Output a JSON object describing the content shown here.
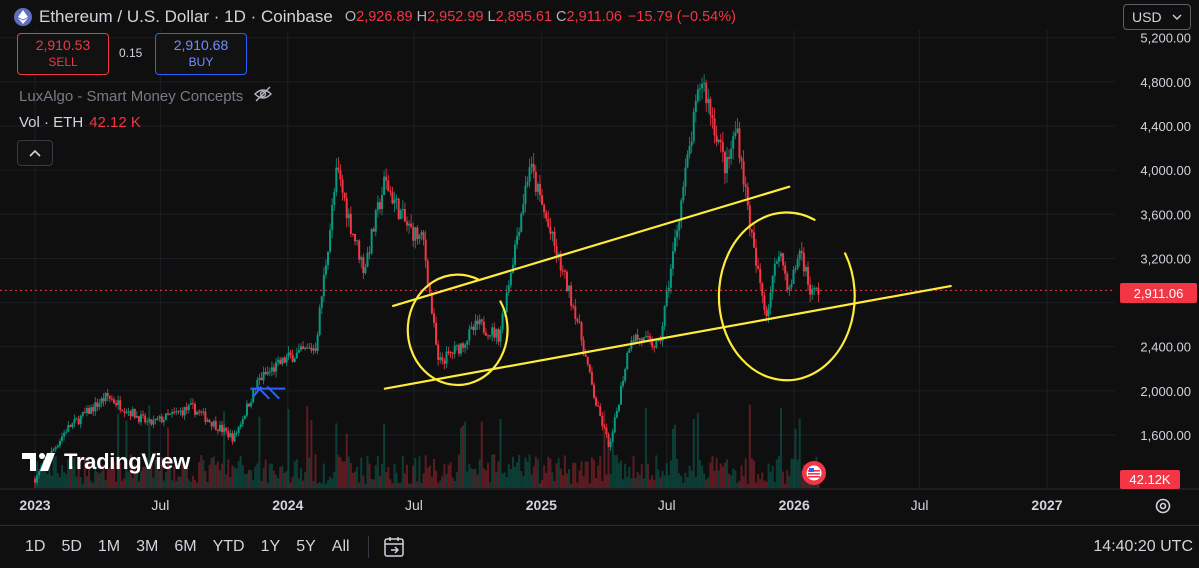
{
  "header": {
    "title": "Ethereum / U.S. Dollar · 1D · Coinbase",
    "ohlc": [
      {
        "k": "O",
        "v": "2,926.89"
      },
      {
        "k": "H",
        "v": "2,952.99"
      },
      {
        "k": "L",
        "v": "2,895.61"
      },
      {
        "k": "C",
        "v": "2,911.06"
      }
    ],
    "change": "−15.79 (−0.54%)"
  },
  "trade": {
    "sell_price": "2,910.53",
    "sell_label": "SELL",
    "spread": "0.15",
    "buy_price": "2,910.68",
    "buy_label": "BUY"
  },
  "indicator": {
    "name": "LuxAlgo - Smart Money Concepts",
    "icon": "eye-off-icon"
  },
  "volume": {
    "label": "Vol · ETH",
    "value": "42.12 K",
    "tag": "42.12K"
  },
  "currency": {
    "selected": "USD"
  },
  "last_price_tag": "2,911.06",
  "brand": "TradingView",
  "bottom": {
    "ranges": [
      "1D",
      "5D",
      "1M",
      "3M",
      "6M",
      "YTD",
      "1Y",
      "5Y",
      "All"
    ],
    "clock": "14:40:20 UTC"
  },
  "colors": {
    "up": "#089981",
    "down": "#f23645",
    "drawing": "#ffeb3b",
    "accent": "#2962ff"
  },
  "chart_data": {
    "type": "candlestick",
    "title": "Ethereum / U.S. Dollar · 1D · Coinbase",
    "y_ticks": [
      1600,
      2000,
      2400,
      2800,
      3200,
      3600,
      4000,
      4400,
      4800,
      5200
    ],
    "y_tick_labels": [
      "1,600.00",
      "2,000.00",
      "2,400.00",
      "",
      "3,200.00",
      "3,600.00",
      "4,000.00",
      "4,400.00",
      "4,800.00",
      "5,200.00"
    ],
    "x_labels": [
      "2023",
      "Jul",
      "2024",
      "Jul",
      "2025",
      "Jul",
      "2026",
      "Jul",
      "2027"
    ],
    "x_bold": [
      true,
      false,
      true,
      false,
      true,
      false,
      true,
      false,
      true
    ],
    "x_dates": [
      "2023-01-01",
      "2023-07-01",
      "2024-01-01",
      "2024-07-01",
      "2025-01-01",
      "2025-07-01",
      "2026-01-01",
      "2026-07-01",
      "2027-01-01"
    ],
    "ylim": [
      1120,
      5270
    ],
    "last_price": 2911.06,
    "price_path": [
      [
        "2023-01-01",
        1200
      ],
      [
        "2023-02-15",
        1650
      ],
      [
        "2023-04-15",
        1950
      ],
      [
        "2023-06-15",
        1700
      ],
      [
        "2023-08-15",
        1850
      ],
      [
        "2023-10-15",
        1570
      ],
      [
        "2023-11-20",
        2100
      ],
      [
        "2024-01-01",
        2300
      ],
      [
        "2024-02-10",
        2400
      ],
      [
        "2024-03-12",
        4000
      ],
      [
        "2024-04-01",
        3500
      ],
      [
        "2024-04-20",
        3100
      ],
      [
        "2024-05-20",
        3900
      ],
      [
        "2024-06-20",
        3500
      ],
      [
        "2024-07-15",
        3350
      ],
      [
        "2024-08-05",
        2250
      ],
      [
        "2024-09-05",
        2400
      ],
      [
        "2024-10-01",
        2600
      ],
      [
        "2024-11-01",
        2500
      ],
      [
        "2024-12-15",
        4050
      ],
      [
        "2025-01-20",
        3300
      ],
      [
        "2025-02-20",
        2700
      ],
      [
        "2025-03-20",
        1900
      ],
      [
        "2025-04-10",
        1480
      ],
      [
        "2025-05-10",
        2500
      ],
      [
        "2025-06-20",
        2400
      ],
      [
        "2025-07-20",
        3650
      ],
      [
        "2025-08-20",
        4850
      ],
      [
        "2025-09-25",
        4000
      ],
      [
        "2025-10-10",
        4400
      ],
      [
        "2025-11-05",
        3200
      ],
      [
        "2025-11-22",
        2700
      ],
      [
        "2025-12-10",
        3300
      ],
      [
        "2025-12-25",
        2900
      ],
      [
        "2026-01-10",
        3300
      ],
      [
        "2026-01-25",
        2880
      ],
      [
        "2026-02-05",
        2911
      ]
    ],
    "annotations": {
      "channel_lines": [
        {
          "from": [
            "2024-06-01",
            2770
          ],
          "to": [
            "2025-12-25",
            3850
          ]
        },
        {
          "from": [
            "2024-05-20",
            2020
          ],
          "to": [
            "2026-08-15",
            2950
          ]
        }
      ],
      "circles": [
        {
          "center": [
            "2024-09-10",
            2510
          ],
          "rx_days": 72,
          "ry_price": 1000
        },
        {
          "center": [
            "2026-01-01",
            2790
          ],
          "rx_days": 98,
          "ry_price": 1520
        }
      ],
      "blue_mark": {
        "center": [
          "2023-11-15",
          2020
        ]
      }
    }
  }
}
